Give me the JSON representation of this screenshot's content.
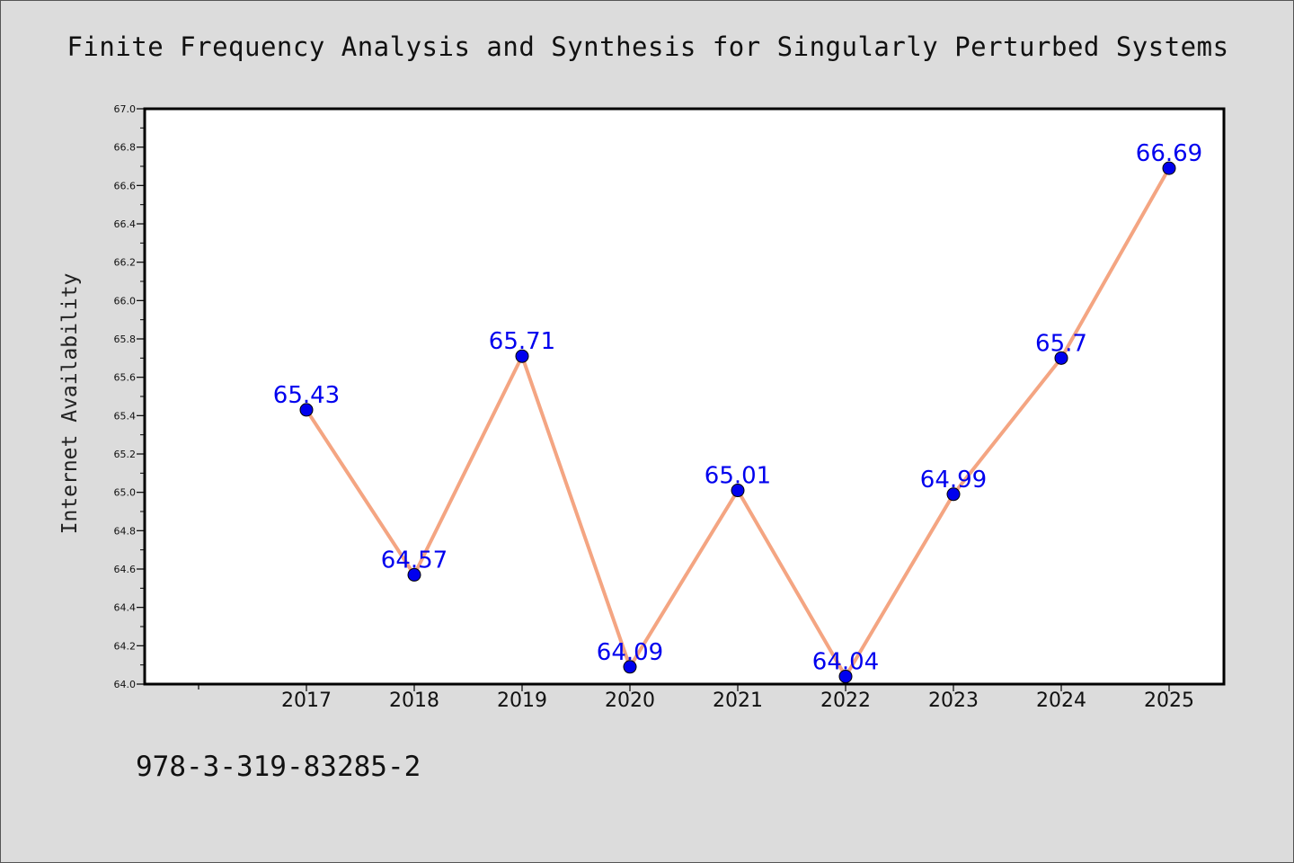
{
  "chart_data": {
    "type": "line",
    "title": "Finite Frequency Analysis and Synthesis for Singularly Perturbed Systems",
    "xlabel": "",
    "ylabel": "Internet Availability",
    "x": [
      "2017",
      "2018",
      "2019",
      "2020",
      "2021",
      "2022",
      "2023",
      "2024",
      "2025"
    ],
    "series": [
      {
        "values": [
          65.43,
          64.57,
          65.71,
          64.09,
          65.01,
          64.04,
          64.99,
          65.7,
          66.69
        ],
        "labels": [
          "65.43",
          "64.57",
          "65.71",
          "64.09",
          "65.01",
          "64.04",
          "64.99",
          "65.7",
          "66.69"
        ]
      }
    ],
    "ylim": [
      64.0,
      67.0
    ],
    "yticks": [
      "64.0",
      "64.2",
      "64.4",
      "64.6",
      "64.8",
      "65.0",
      "65.2",
      "65.4",
      "65.6",
      "65.8",
      "66.0",
      "66.2",
      "66.4",
      "66.6",
      "66.8",
      "67.0"
    ],
    "grid": false,
    "legend": "none",
    "colors": {
      "line": "#f4a582",
      "marker": "#0000ee",
      "label": "#0000ee"
    }
  },
  "footer_text": "978-3-319-83285-2"
}
